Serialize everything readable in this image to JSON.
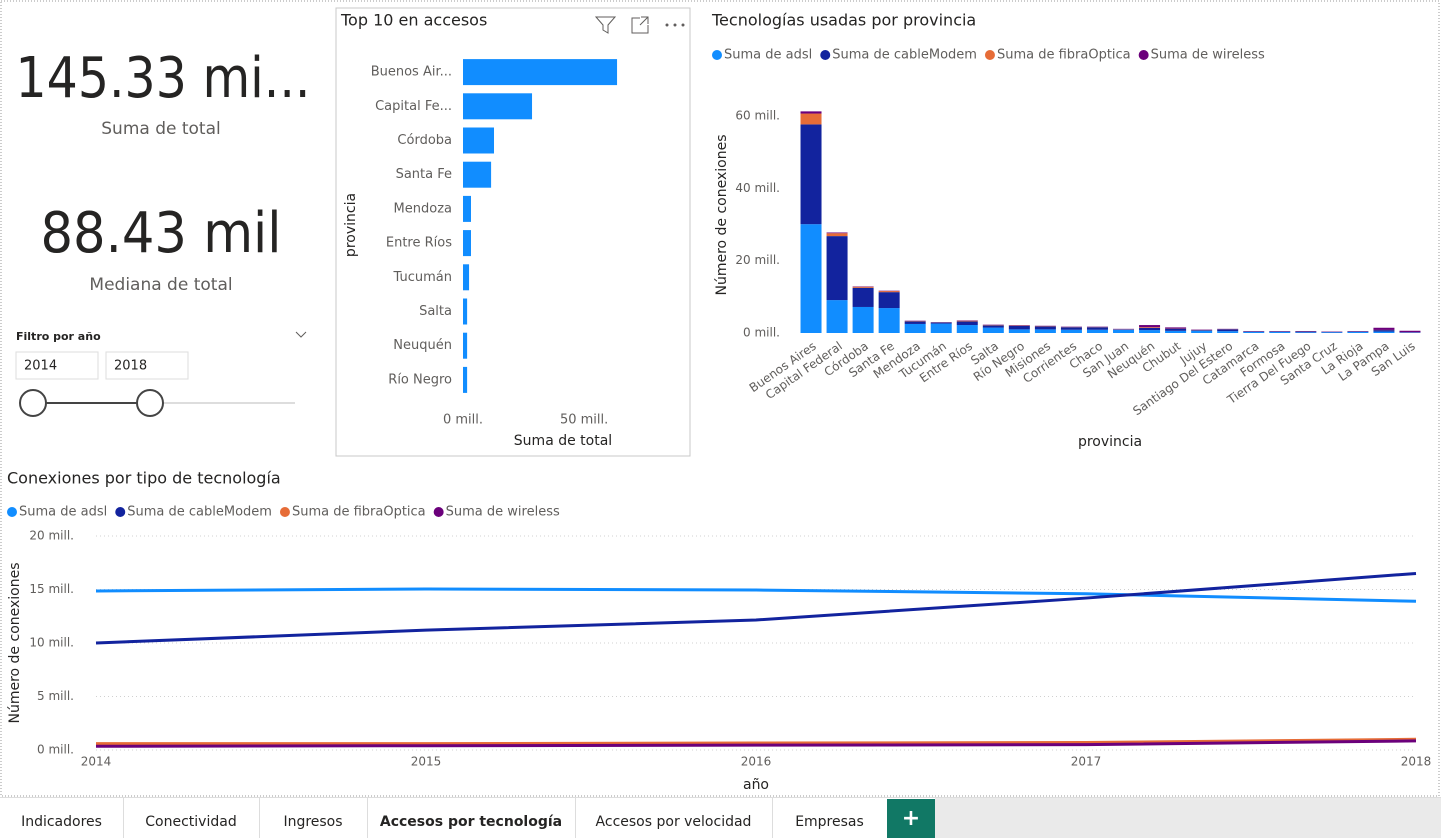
{
  "cards": [
    {
      "value": "145.33 mi...",
      "label": "Suma de total"
    },
    {
      "value": "88.43 mil",
      "label": "Mediana de total"
    }
  ],
  "slicer": {
    "title": "Filtro por año",
    "from": "2014",
    "to": "2018"
  },
  "chart_data": [
    {
      "type": "hbar",
      "title": "Top 10 en accesos",
      "x_label": "Suma de total",
      "y_label": "provincia",
      "categories": [
        "Buenos Air...",
        "Capital Fe...",
        "Córdoba",
        "Santa Fe",
        "Mendoza",
        "Entre Ríos",
        "Tucumán",
        "Salta",
        "Neuquén",
        "Río Negro"
      ],
      "values": [
        63.6,
        28.5,
        12.8,
        11.6,
        3.3,
        3.3,
        2.5,
        1.7,
        1.7,
        1.7
      ],
      "color": "#118DFF",
      "xlim": [
        0,
        90
      ],
      "xticks": [
        {
          "value": 0,
          "label": "0 mill."
        },
        {
          "value": 50,
          "label": "50 mill."
        }
      ],
      "grid": false
    },
    {
      "type": "stacked_bar",
      "title": "Tecnologías usadas por provincia",
      "x_label": "provincia",
      "y_label": "Número de conexiones",
      "categories": [
        "Buenos Aires",
        "Capital Federal",
        "Córdoba",
        "Santa Fe",
        "Mendoza",
        "Tucumán",
        "Entre Ríos",
        "Salta",
        "Río Negro",
        "Misiones",
        "Corrientes",
        "Chaco",
        "San Juan",
        "Neuquén",
        "Chubut",
        "Jujuy",
        "Santiago Del Estero",
        "Catamarca",
        "Formosa",
        "Tierra Del Fuego",
        "Santa Cruz",
        "La Rioja",
        "La Pampa",
        "San Luis"
      ],
      "series": [
        {
          "name": "Suma de adsl",
          "color": "#118DFF",
          "values": [
            30.1,
            9.1,
            7.2,
            6.9,
            2.5,
            2.6,
            2.2,
            1.5,
            1.0,
            1.0,
            0.9,
            0.9,
            0.9,
            0.8,
            0.6,
            0.6,
            0.5,
            0.3,
            0.3,
            0.2,
            0.2,
            0.3,
            0.4,
            0.1
          ]
        },
        {
          "name": "Suma de cableModem",
          "color": "#12239E",
          "values": [
            27.6,
            17.7,
            5.3,
            4.4,
            0.7,
            0.3,
            1.0,
            0.6,
            1.0,
            0.8,
            0.7,
            0.7,
            0.1,
            0.6,
            0.6,
            0.2,
            0.5,
            0.1,
            0.1,
            0.2,
            0.1,
            0.1,
            0.4,
            0.1
          ]
        },
        {
          "name": "Suma de fibraOptica",
          "color": "#E66C37",
          "values": [
            3.0,
            0.8,
            0.3,
            0.3,
            0.1,
            0.05,
            0.2,
            0.1,
            0.1,
            0.1,
            0.05,
            0.05,
            0.05,
            0.2,
            0.05,
            0.05,
            0.05,
            0.02,
            0.02,
            0.05,
            0.02,
            0.02,
            0.05,
            0.02
          ]
        },
        {
          "name": "Suma de wireless",
          "color": "#6B007B",
          "values": [
            0.6,
            0.2,
            0.1,
            0.1,
            0.1,
            0.05,
            0.1,
            0.1,
            0.1,
            0.1,
            0.1,
            0.1,
            0.1,
            0.6,
            0.3,
            0.1,
            0.1,
            0.1,
            0.1,
            0.1,
            0.1,
            0.1,
            0.6,
            0.4
          ]
        }
      ],
      "ylim": [
        0,
        65
      ],
      "yticks": [
        {
          "value": 0,
          "label": "0 mill."
        },
        {
          "value": 20,
          "label": "20 mill."
        },
        {
          "value": 40,
          "label": "40 mill."
        },
        {
          "value": 60,
          "label": "60 mill."
        }
      ],
      "grid": false
    },
    {
      "type": "line",
      "title": "Conexiones por tipo de tecnología",
      "x_label": "año",
      "y_label": "Número de conexiones",
      "x": [
        2014,
        2015,
        2016,
        2017,
        2018
      ],
      "series": [
        {
          "name": "Suma de adsl",
          "color": "#118DFF",
          "values": [
            14.86,
            15.05,
            14.95,
            14.6,
            13.9
          ]
        },
        {
          "name": "Suma de cableModem",
          "color": "#12239E",
          "values": [
            10.0,
            11.2,
            12.15,
            14.2,
            16.5
          ]
        },
        {
          "name": "Suma de fibraOptica",
          "color": "#E66C37",
          "values": [
            0.6,
            0.6,
            0.65,
            0.7,
            1.0
          ]
        },
        {
          "name": "Suma de wireless",
          "color": "#6B007B",
          "values": [
            0.35,
            0.4,
            0.45,
            0.5,
            0.85
          ]
        }
      ],
      "xlim": [
        2014,
        2018
      ],
      "xticks": [
        2014,
        2015,
        2016,
        2017,
        2018
      ],
      "ylim": [
        0,
        20
      ],
      "yticks": [
        {
          "value": 0,
          "label": "0 mill."
        },
        {
          "value": 5,
          "label": "5 mill."
        },
        {
          "value": 10,
          "label": "10 mill."
        },
        {
          "value": 15,
          "label": "15 mill."
        },
        {
          "value": 20,
          "label": "20 mill."
        }
      ],
      "grid": true
    }
  ],
  "tabs": [
    "Indicadores",
    "Conectividad",
    "Ingresos",
    "Accesos por tecnología",
    "Accesos por velocidad",
    "Empresas"
  ],
  "add_tab": "+"
}
